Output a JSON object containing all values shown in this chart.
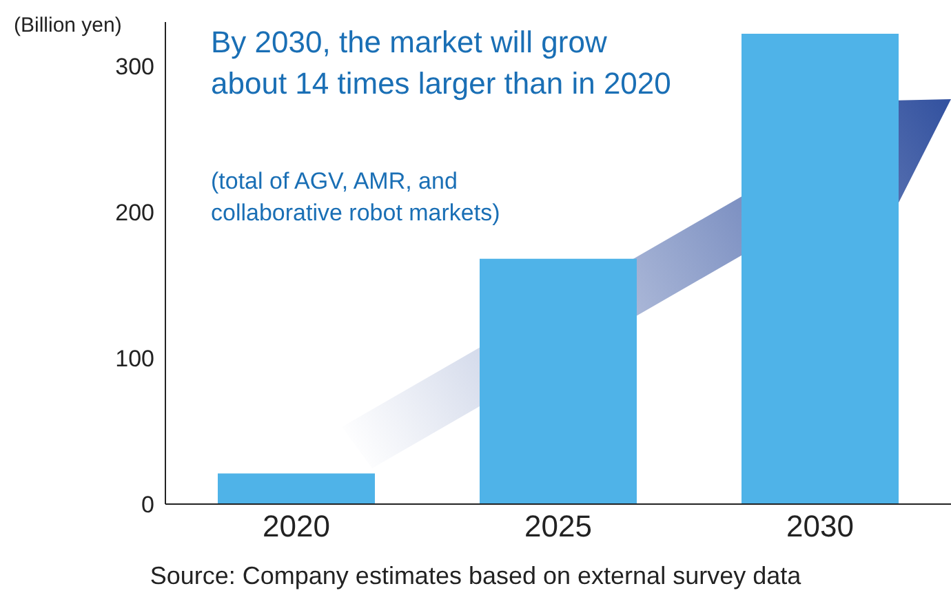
{
  "chart_data": {
    "type": "bar",
    "title": "By 2030, the market will grow about 14 times larger than in 2020",
    "subtitle": "(total of AGV, AMR, and collaborative robot markets)",
    "ylabel": "(Billion yen)",
    "annotations": [
      "Source: Company estimates based on external survey data"
    ],
    "categories": [
      "2020",
      "2025",
      "2030"
    ],
    "values": [
      21,
      168,
      322
    ],
    "color": "#4fb3e8",
    "ylim": [
      0,
      330
    ],
    "yticks": [
      0,
      100,
      200,
      300
    ]
  }
}
